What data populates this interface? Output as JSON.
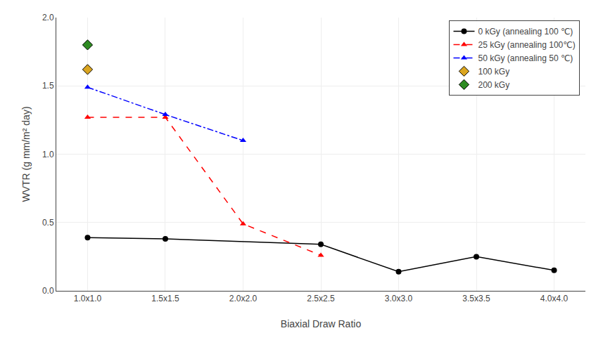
{
  "chart_data": {
    "type": "line",
    "xlabel": "Biaxial Draw Ratio",
    "ylabel": "WVTR (g mm/m² day)",
    "categories": [
      "1.0x1.0",
      "1.5x1.5",
      "2.0x2.0",
      "2.5x2.5",
      "3.0x3.0",
      "3.5x3.5",
      "4.0x4.0"
    ],
    "series": [
      {
        "name": "0 kGy (annealing 100 ℃)",
        "color": "black",
        "marker": "circle",
        "line_style": "solid",
        "values": [
          0.39,
          0.38,
          null,
          0.34,
          0.14,
          0.25,
          0.15
        ]
      },
      {
        "name": "25 kGy (annealing 100℃)",
        "color": "red",
        "marker": "triangle-up",
        "line_style": "dash",
        "values": [
          1.27,
          1.27,
          0.49,
          0.26,
          null,
          null,
          null
        ]
      },
      {
        "name": "50 kGy (annealing 50 ℃)",
        "color": "blue",
        "marker": "triangle-up",
        "line_style": "dashdot",
        "values": [
          1.49,
          1.29,
          1.1,
          null,
          null,
          null,
          null
        ]
      },
      {
        "name": "100 kGy",
        "type": "scatter",
        "color": "#DAA520",
        "marker": "diamond",
        "values": [
          1.62,
          null,
          null,
          null,
          null,
          null,
          null
        ]
      },
      {
        "name": "200 kGy",
        "type": "scatter",
        "color": "#2E8B22",
        "marker": "diamond",
        "values": [
          1.8,
          null,
          null,
          null,
          null,
          null,
          null
        ]
      }
    ],
    "ylim": [
      0.0,
      2.0
    ],
    "yticks": [
      {
        "value": 0.0,
        "label": "0.0"
      },
      0.5,
      {
        "value": 1.0,
        "label": "1.0"
      },
      1.5,
      {
        "value": 2.0,
        "label": "2.0"
      }
    ],
    "grid": true,
    "legend": "upper right"
  }
}
